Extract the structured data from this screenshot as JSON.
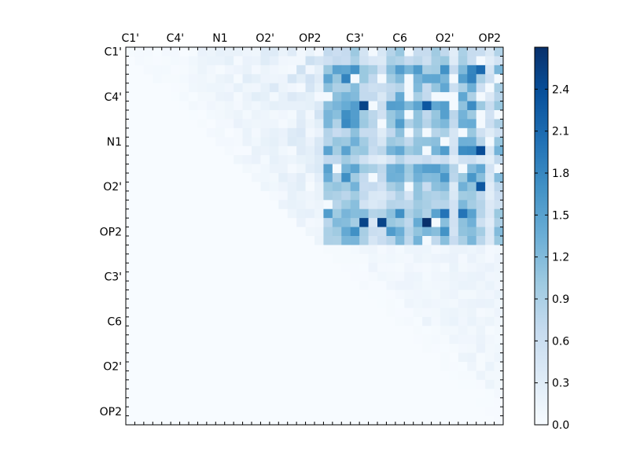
{
  "chart_data": {
    "type": "heatmap",
    "title": "",
    "xlabel": "",
    "ylabel": "",
    "x_tick_labels": [
      "C1'",
      "C4'",
      "N1",
      "O2'",
      "OP2",
      "C3'",
      "C6",
      "O2'",
      "OP2"
    ],
    "y_tick_labels": [
      "C1'",
      "C4'",
      "N1",
      "O2'",
      "OP2",
      "C3'",
      "C6",
      "O2'",
      "OP2"
    ],
    "colormap": [
      "#f7fbff",
      "#deebf7",
      "#c6dbef",
      "#9ecae1",
      "#6baed6",
      "#4292c6",
      "#2171b5",
      "#08519c",
      "#08306b"
    ],
    "colorbar": {
      "range": [
        0.0,
        2.7
      ],
      "ticks": [
        "0.0",
        "0.3",
        "0.6",
        "0.9",
        "1.2",
        "1.5",
        "1.8",
        "2.1",
        "2.4"
      ]
    },
    "n_rows": 42,
    "n_cols": 42,
    "grid": false,
    "matrix_structure": "upper-triangular; cells with row greater than column are zero; strongest values in rows 0-21 x columns 22-41",
    "notable_max_cells": [
      {
        "row": 19,
        "col": 33,
        "value": 2.7
      },
      {
        "row": 6,
        "col": 26,
        "value": 2.5
      },
      {
        "row": 19,
        "col": 26,
        "value": 2.5
      },
      {
        "row": 19,
        "col": 28,
        "value": 2.5
      },
      {
        "row": 6,
        "col": 33,
        "value": 2.3
      },
      {
        "row": 11,
        "col": 39,
        "value": 2.4
      },
      {
        "row": 15,
        "col": 39,
        "value": 2.3
      },
      {
        "row": 2,
        "col": 39,
        "value": 2.1
      }
    ]
  }
}
